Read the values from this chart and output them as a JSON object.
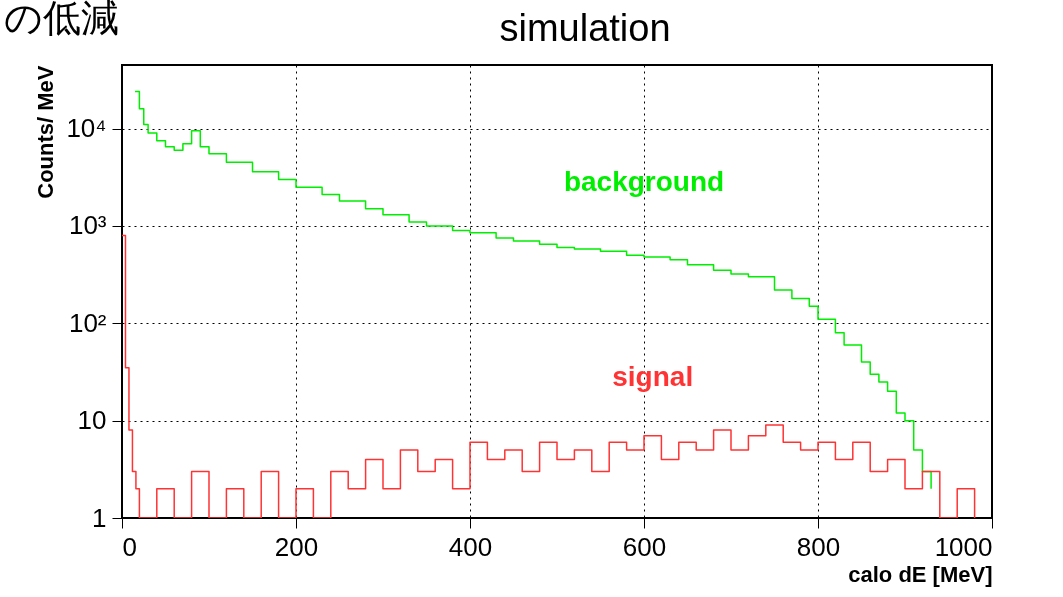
{
  "chart_data": {
    "type": "step",
    "title": "simulation",
    "xlabel": "calo dE [MeV]",
    "ylabel": "Counts/ MeV",
    "annotations": [
      "の低減"
    ],
    "xlim": [
      0,
      1000
    ],
    "xticks": [
      0,
      200,
      400,
      600,
      800,
      1000
    ],
    "ylim": [
      1,
      45000
    ],
    "yticks": [
      1,
      10,
      {
        "value": 100,
        "label": "10²"
      },
      {
        "value": 1000,
        "label": "10³"
      },
      {
        "value": 10000,
        "label": "10⁴"
      }
    ],
    "log": "y",
    "grid": true,
    "legend": false,
    "marker": "none",
    "line_style": "solid",
    "series": [
      {
        "name": "background",
        "color": "#00ee00",
        "x": [
          15,
          20,
          25,
          30,
          40,
          50,
          60,
          70,
          80,
          90,
          100,
          120,
          150,
          180,
          200,
          230,
          250,
          280,
          300,
          330,
          350,
          380,
          400,
          430,
          450,
          480,
          500,
          520,
          550,
          580,
          600,
          630,
          650,
          680,
          700,
          720,
          750,
          770,
          790,
          800,
          820,
          830,
          850,
          860,
          870,
          880,
          890,
          900,
          910,
          920,
          930
        ],
        "values": [
          24000,
          16000,
          11000,
          9000,
          7500,
          6500,
          6000,
          7000,
          9500,
          6500,
          5500,
          4500,
          3600,
          3000,
          2500,
          2100,
          1800,
          1500,
          1300,
          1100,
          1000,
          900,
          850,
          750,
          700,
          650,
          600,
          580,
          550,
          500,
          480,
          450,
          400,
          350,
          320,
          300,
          220,
          180,
          150,
          110,
          80,
          60,
          40,
          30,
          25,
          20,
          12,
          10,
          5,
          3,
          2
        ]
      },
      {
        "name": "signal",
        "color": "#ff3333",
        "x": [
          0,
          4,
          8,
          12,
          16,
          20,
          40,
          60,
          80,
          100,
          120,
          140,
          160,
          180,
          200,
          220,
          240,
          260,
          280,
          300,
          320,
          340,
          360,
          380,
          400,
          420,
          440,
          460,
          480,
          500,
          520,
          540,
          560,
          580,
          600,
          620,
          640,
          660,
          680,
          700,
          720,
          740,
          760,
          780,
          800,
          820,
          840,
          860,
          880,
          900,
          920,
          940,
          960,
          980
        ],
        "values": [
          800,
          35,
          8,
          3,
          2,
          1,
          2,
          1,
          3,
          1,
          2,
          1,
          3,
          1,
          2,
          1,
          3,
          2,
          4,
          2,
          5,
          3,
          4,
          2,
          6,
          4,
          5,
          3,
          6,
          4,
          5,
          3,
          6,
          5,
          7,
          4,
          6,
          5,
          8,
          5,
          7,
          9,
          6,
          5,
          6,
          4,
          6,
          3,
          4,
          2,
          3,
          1,
          2,
          1
        ]
      }
    ]
  }
}
